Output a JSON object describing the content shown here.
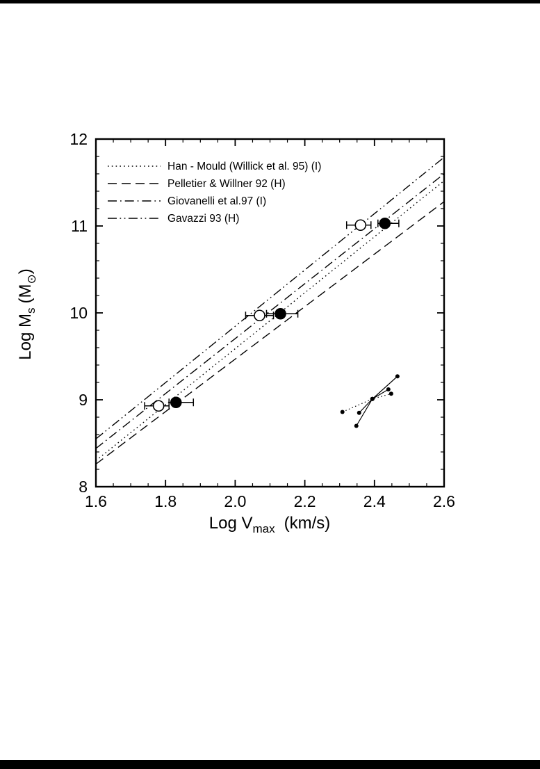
{
  "figure": {
    "background": "#ffffff",
    "ink": "#000000",
    "top_bar_color": "#000000",
    "bottom_bar_color": "#000000"
  },
  "chart_data": {
    "type": "scatter",
    "title": "",
    "xlabel": {
      "text": "Log V",
      "sub": "max",
      "unit": "(km/s)"
    },
    "ylabel": {
      "text": "Log M",
      "sub": "s",
      "unit_prefix": "(M",
      "unit_sub": "⊙",
      "unit_suffix": ")"
    },
    "xlim": [
      1.6,
      2.6
    ],
    "ylim": [
      8,
      12
    ],
    "grid": false,
    "x_ticks": {
      "major": [
        1.6,
        1.8,
        2.0,
        2.2,
        2.4,
        2.6
      ],
      "labels": [
        "1.6",
        "1.8",
        "2.0",
        "2.2",
        "2.4",
        "2.6"
      ],
      "minor_step": 0.05
    },
    "y_ticks": {
      "major": [
        8,
        9,
        10,
        11,
        12
      ],
      "labels": [
        "8",
        "9",
        "10",
        "11",
        "12"
      ],
      "minor_step": 0.2
    },
    "legend": {
      "position": "top-left",
      "entries": [
        {
          "label": "Han - Mould (Willick et al. 95) (I)",
          "style": "dotted"
        },
        {
          "label": "Pelletier & Willner 92 (H)",
          "style": "dashed"
        },
        {
          "label": "Giovanelli et al.97 (I)",
          "style": "dashdot"
        },
        {
          "label": "Gavazzi 93 (H)",
          "style": "dashdotdot"
        }
      ]
    },
    "relation_lines": [
      {
        "name": "han_mould_willick95",
        "style": "dotted",
        "x": [
          1.6,
          2.6
        ],
        "y": [
          8.3,
          11.52
        ]
      },
      {
        "name": "pelletier_willner92",
        "style": "dashed",
        "x": [
          1.6,
          2.6
        ],
        "y": [
          8.26,
          11.28
        ]
      },
      {
        "name": "giovanelli97",
        "style": "dashdot",
        "x": [
          1.6,
          2.6
        ],
        "y": [
          8.44,
          11.6
        ]
      },
      {
        "name": "gavazzi93",
        "style": "dashdotdot",
        "x": [
          1.6,
          2.6
        ],
        "y": [
          8.55,
          11.79
        ]
      }
    ],
    "series": [
      {
        "name": "open_circles",
        "marker": "open-circle",
        "points": [
          {
            "x": 1.78,
            "y": 8.93,
            "xerr_lo": 1.74,
            "xerr_hi": 1.81
          },
          {
            "x": 2.07,
            "y": 9.97,
            "xerr_lo": 2.03,
            "xerr_hi": 2.11
          },
          {
            "x": 2.36,
            "y": 11.01,
            "xerr_lo": 2.32,
            "xerr_hi": 2.39
          }
        ]
      },
      {
        "name": "filled_circles",
        "marker": "filled-circle",
        "points": [
          {
            "x": 1.83,
            "y": 8.97,
            "xerr_lo": 1.81,
            "xerr_hi": 1.88
          },
          {
            "x": 2.13,
            "y": 9.99,
            "xerr_lo": 2.09,
            "xerr_hi": 2.18
          },
          {
            "x": 2.43,
            "y": 11.03,
            "xerr_lo": 2.41,
            "xerr_hi": 2.47
          }
        ]
      }
    ],
    "slope_fan": {
      "center": {
        "x": 2.394,
        "y": 9.01
      },
      "segments": [
        {
          "style": "solid",
          "points": [
            [
              2.348,
              8.7
            ],
            [
              2.394,
              9.01
            ],
            [
              2.466,
              9.27
            ]
          ]
        },
        {
          "style": "solid",
          "points": [
            [
              2.356,
              8.85
            ],
            [
              2.394,
              9.01
            ],
            [
              2.44,
              9.12
            ]
          ]
        },
        {
          "style": "dotted",
          "points": [
            [
              2.308,
              8.86
            ],
            [
              2.394,
              9.01
            ],
            [
              2.448,
              9.07
            ]
          ]
        }
      ]
    }
  }
}
